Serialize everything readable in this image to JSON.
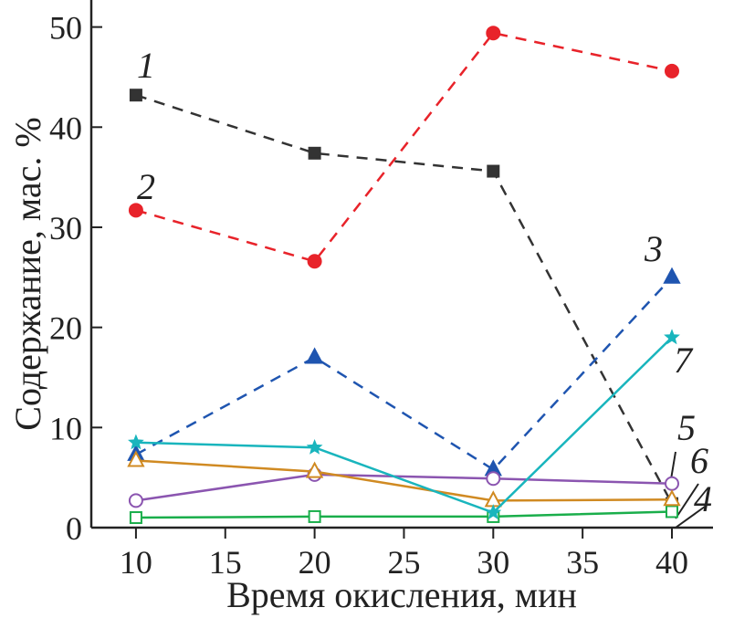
{
  "chart_data": {
    "type": "line",
    "xlabel": "Время окисления, мин",
    "ylabel": "Содержание, мас. %",
    "xlim": [
      7.5,
      42.3
    ],
    "ylim": [
      0,
      52.7
    ],
    "xticks": [
      10,
      15,
      20,
      25,
      30,
      35,
      40
    ],
    "yticks": [
      0,
      10,
      20,
      30,
      40,
      50
    ],
    "grid": false,
    "x": [
      10,
      20,
      30,
      40
    ],
    "series": [
      {
        "name": "1",
        "values": [
          43.2,
          37.4,
          35.6,
          2.4
        ],
        "color": "#333333",
        "dash": true,
        "marker": "square-filled"
      },
      {
        "name": "2",
        "values": [
          31.7,
          26.6,
          49.4,
          45.6
        ],
        "color": "#e8232a",
        "dash": true,
        "marker": "circle-filled"
      },
      {
        "name": "3",
        "values": [
          7.3,
          17.0,
          5.8,
          25.0
        ],
        "color": "#1f55b0",
        "dash": true,
        "marker": "triangle-filled"
      },
      {
        "name": "4",
        "values": [
          1.0,
          1.1,
          1.1,
          1.6
        ],
        "color": "#1aae4b",
        "dash": false,
        "marker": "square-open"
      },
      {
        "name": "5",
        "values": [
          2.7,
          5.3,
          4.9,
          4.4
        ],
        "color": "#8b55b0",
        "dash": false,
        "marker": "circle-open"
      },
      {
        "name": "6",
        "values": [
          6.7,
          5.6,
          2.7,
          2.8
        ],
        "color": "#d08a22",
        "dash": false,
        "marker": "triangle-open"
      },
      {
        "name": "7",
        "values": [
          8.5,
          8.0,
          1.5,
          19.0
        ],
        "color": "#19b5bd",
        "dash": false,
        "marker": "star"
      }
    ]
  }
}
